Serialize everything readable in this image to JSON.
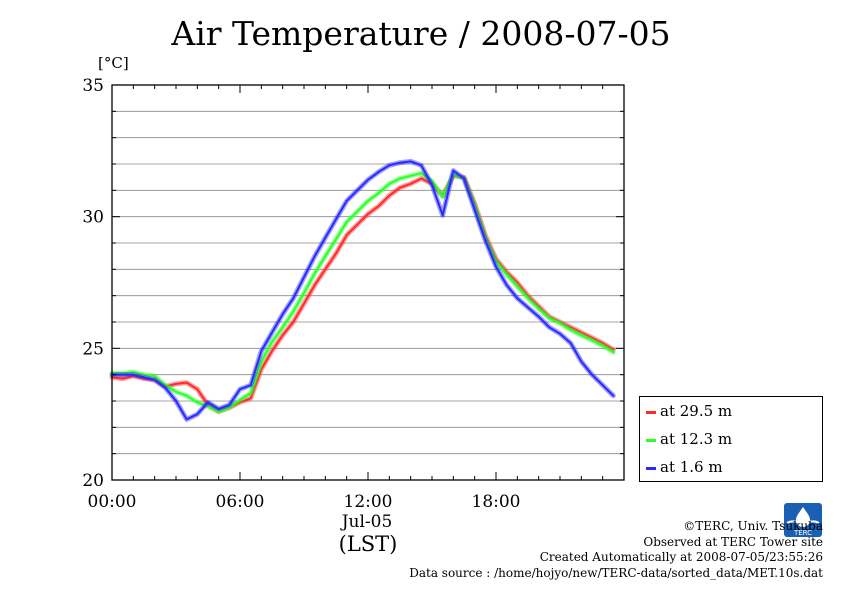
{
  "title": "Air Temperature / 2008-07-05",
  "unit_label": "[°C]",
  "chart_data": {
    "type": "line",
    "title": "Air Temperature / 2008-07-05",
    "ylabel": "[°C]",
    "xlabel": "(LST)",
    "date_label": "Jul-05",
    "xlim": [
      0,
      24
    ],
    "ylim": [
      20,
      35
    ],
    "y_ticks": [
      "20",
      "25",
      "30",
      "35"
    ],
    "x_ticks": [
      "00:00",
      "06:00",
      "12:00",
      "18:00"
    ],
    "grid": true,
    "legend_position": "right-bottom",
    "series": [
      {
        "name": "at 29.5 m",
        "color": "#ff2a2a",
        "x": [
          0,
          0.5,
          1,
          1.5,
          2,
          2.5,
          3,
          3.5,
          4,
          4.5,
          5,
          5.5,
          6,
          6.5,
          7,
          7.5,
          8,
          8.5,
          9,
          9.5,
          10,
          10.5,
          11,
          11.5,
          12,
          12.5,
          13,
          13.5,
          14,
          14.5,
          15,
          15.5,
          16,
          16.5,
          17,
          17.5,
          18,
          18.5,
          19,
          19.5,
          20,
          20.5,
          21,
          21.5,
          22,
          22.5,
          23,
          23.5
        ],
        "y": [
          23.9,
          23.85,
          23.95,
          23.85,
          23.8,
          23.55,
          23.65,
          23.7,
          23.45,
          22.85,
          22.6,
          22.75,
          22.95,
          23.1,
          24.2,
          24.9,
          25.5,
          26.0,
          26.7,
          27.4,
          28.0,
          28.6,
          29.3,
          29.7,
          30.1,
          30.4,
          30.8,
          31.1,
          31.25,
          31.45,
          31.25,
          30.8,
          31.55,
          31.5,
          30.5,
          29.3,
          28.4,
          27.9,
          27.5,
          27.0,
          26.6,
          26.2,
          26.0,
          25.8,
          25.6,
          25.4,
          25.2,
          24.95
        ]
      },
      {
        "name": "at 12.3 m",
        "color": "#2aff2a",
        "x": [
          0,
          0.5,
          1,
          1.5,
          2,
          2.5,
          3,
          3.5,
          4,
          4.5,
          5,
          5.5,
          6,
          6.5,
          7,
          7.5,
          8,
          8.5,
          9,
          9.5,
          10,
          10.5,
          11,
          11.5,
          12,
          12.5,
          13,
          13.5,
          14,
          14.5,
          15,
          15.5,
          16,
          16.5,
          17,
          17.5,
          18,
          18.5,
          19,
          19.5,
          20,
          20.5,
          21,
          21.5,
          22,
          22.5,
          23,
          23.5
        ],
        "y": [
          24.05,
          24.05,
          24.1,
          24.0,
          23.95,
          23.6,
          23.35,
          23.2,
          22.95,
          22.8,
          22.6,
          22.75,
          23.05,
          23.3,
          24.5,
          25.25,
          25.8,
          26.4,
          27.1,
          27.85,
          28.5,
          29.15,
          29.8,
          30.2,
          30.6,
          30.9,
          31.25,
          31.45,
          31.55,
          31.65,
          31.35,
          30.75,
          31.6,
          31.45,
          30.4,
          29.2,
          28.3,
          27.8,
          27.35,
          26.9,
          26.5,
          26.15,
          25.95,
          25.7,
          25.5,
          25.3,
          25.1,
          24.85
        ]
      },
      {
        "name": "at 1.6 m",
        "color": "#2a2aff",
        "x": [
          0,
          0.5,
          1,
          1.5,
          2,
          2.5,
          3,
          3.5,
          4,
          4.5,
          5,
          5.5,
          6,
          6.5,
          7,
          7.5,
          8,
          8.5,
          9,
          9.5,
          10,
          10.5,
          11,
          11.5,
          12,
          12.5,
          13,
          13.5,
          14,
          14.5,
          15,
          15.5,
          16,
          16.5,
          17,
          17.5,
          18,
          18.5,
          19,
          19.5,
          20,
          20.5,
          21,
          21.5,
          22,
          22.5,
          23,
          23.5
        ],
        "y": [
          24.0,
          24.0,
          24.0,
          23.9,
          23.8,
          23.5,
          23.0,
          22.3,
          22.5,
          22.95,
          22.7,
          22.85,
          23.45,
          23.6,
          24.9,
          25.6,
          26.3,
          26.9,
          27.7,
          28.5,
          29.2,
          29.9,
          30.6,
          31.0,
          31.4,
          31.7,
          31.95,
          32.05,
          32.1,
          31.95,
          31.2,
          30.05,
          31.75,
          31.45,
          30.25,
          29.1,
          28.1,
          27.4,
          26.9,
          26.55,
          26.2,
          25.8,
          25.55,
          25.2,
          24.5,
          24.0,
          23.6,
          23.2
        ]
      }
    ]
  },
  "credits": {
    "line1": "©TERC, Univ. Tsukuba",
    "line2": "Observed at TERC Tower site",
    "line3": "Created Automatically at 2008-07-05/23:55:26",
    "line4": "Data source : /home/hojyo/new/TERC-data/sorted_data/MET.10s.dat"
  },
  "logo_text": "TERC",
  "logo_icon": "terc-logo-icon"
}
